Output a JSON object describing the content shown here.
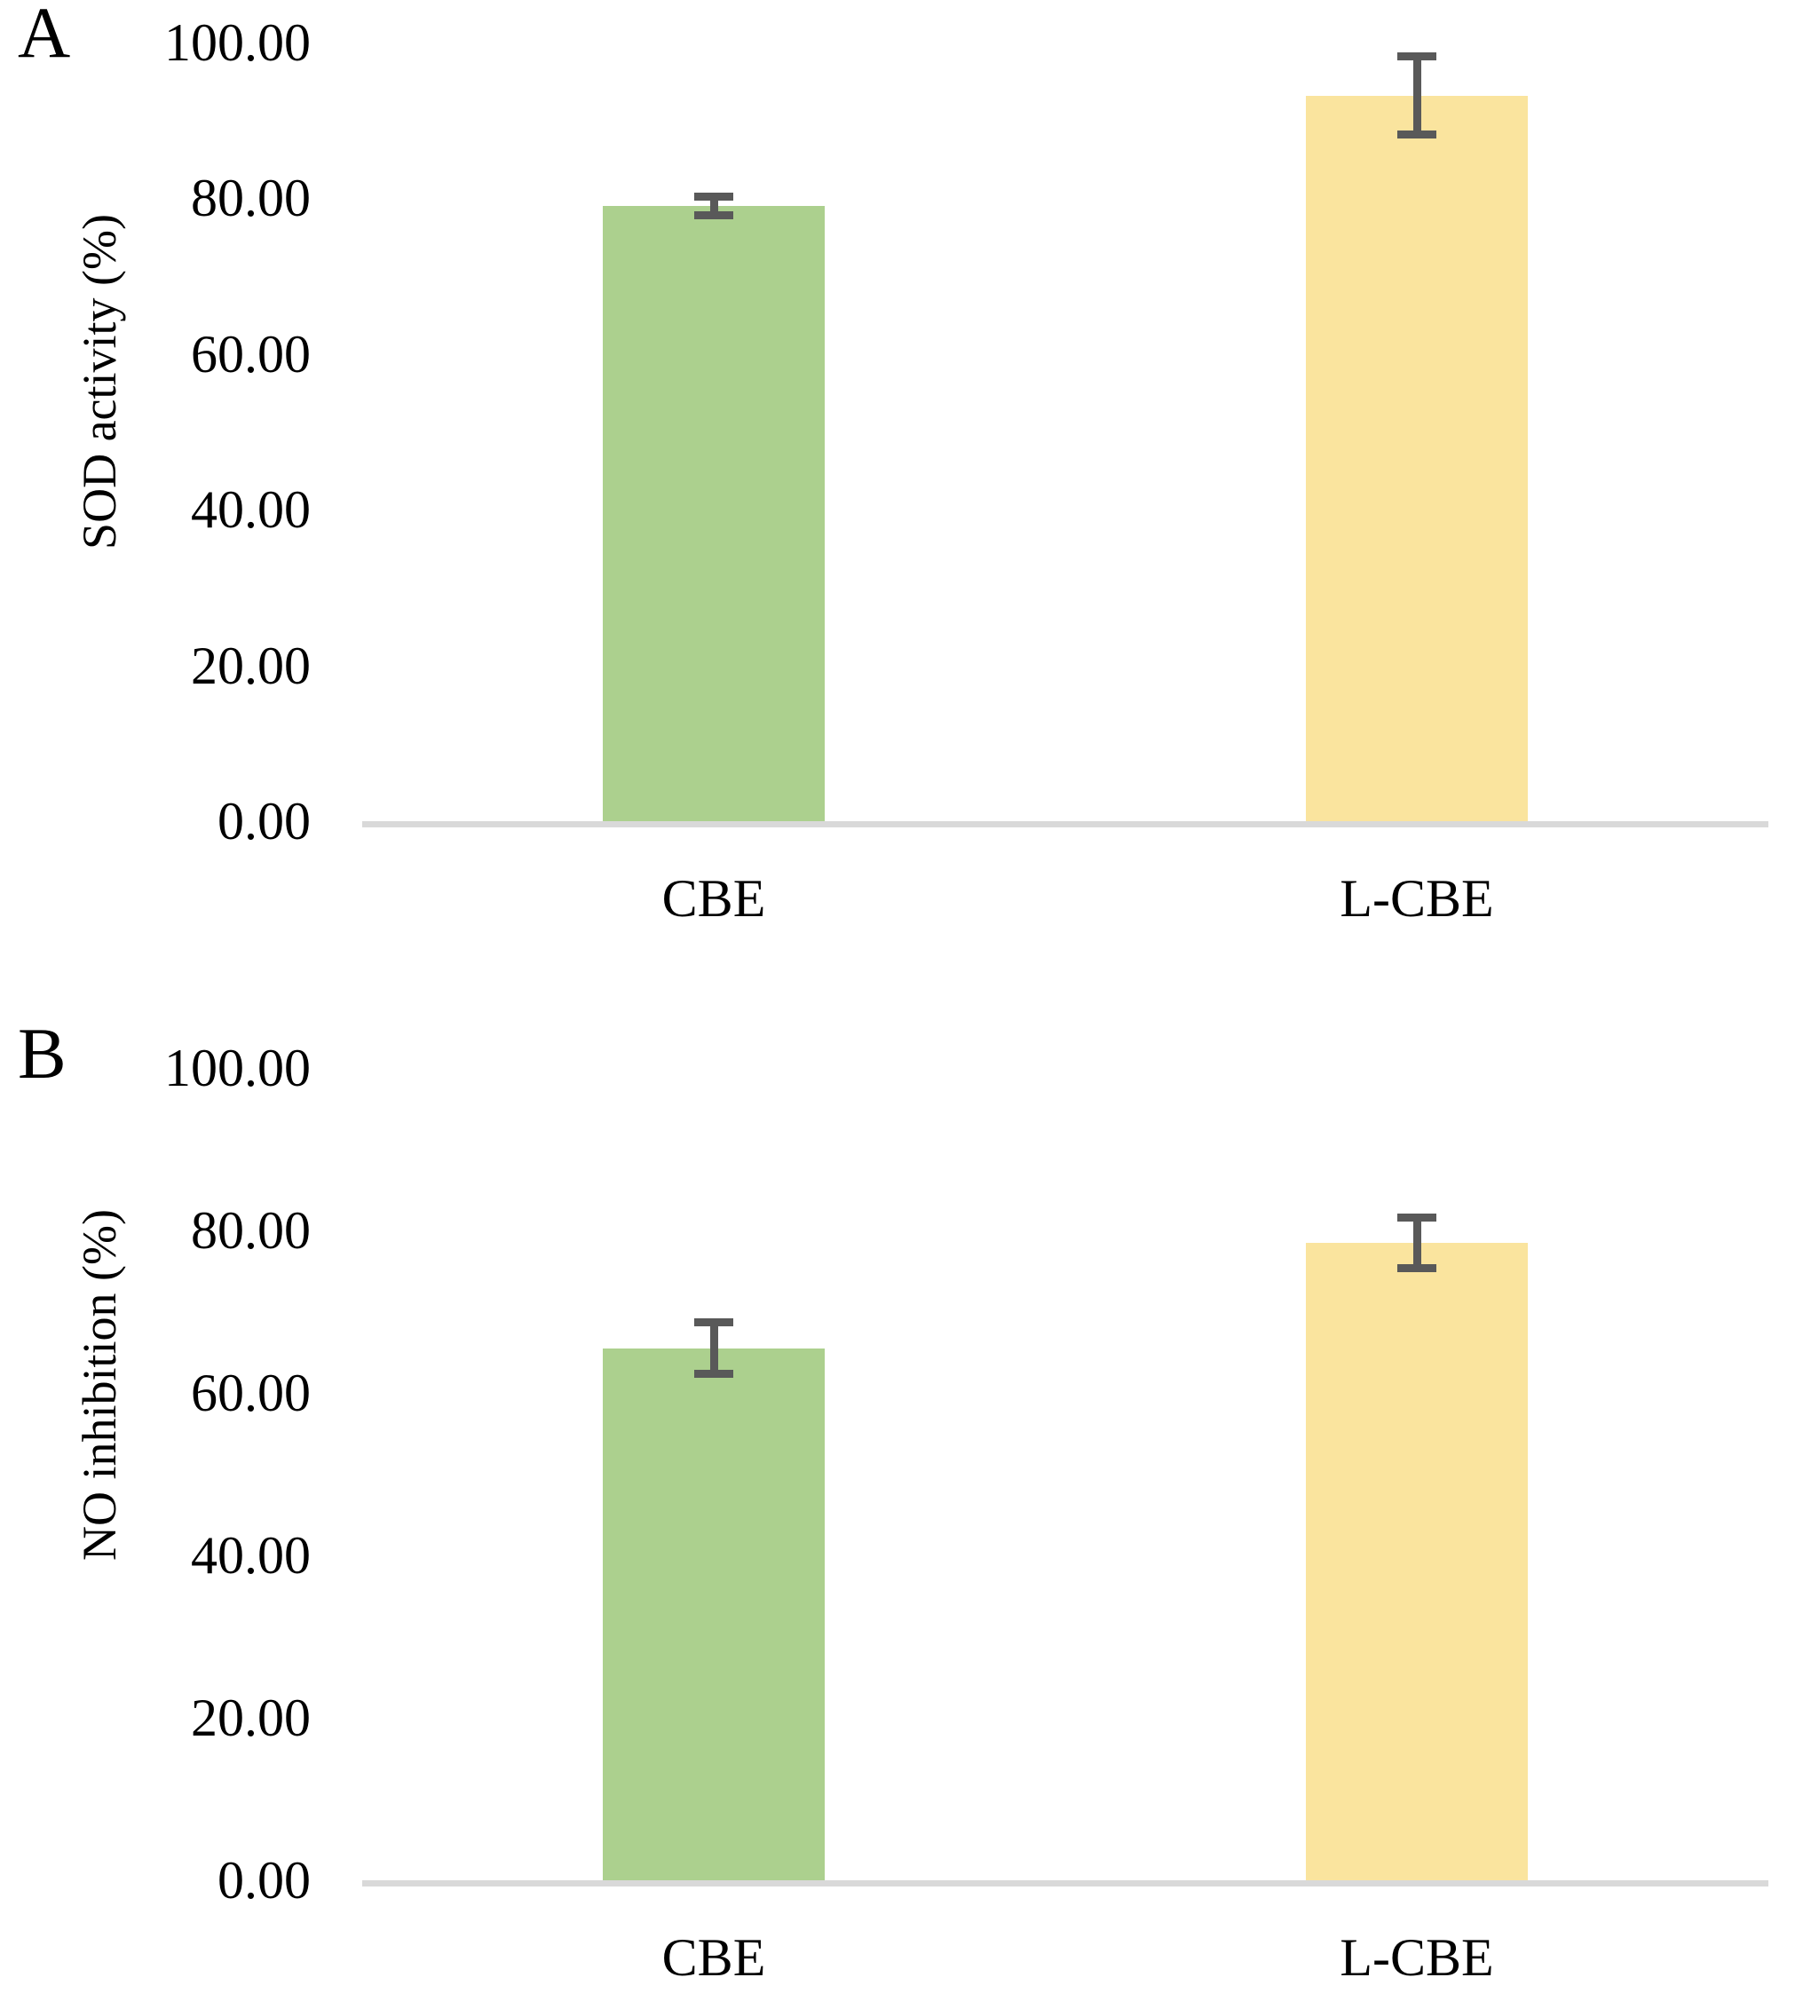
{
  "figure_type": "two-panel bar chart figure",
  "chart_data": [
    {
      "type": "bar",
      "panel_label": "A",
      "title": "",
      "xlabel": "",
      "ylabel": "SOD activity (%)",
      "categories": [
        "CBE",
        "L-CBE"
      ],
      "values": [
        79.0,
        93.2
      ],
      "errors": [
        1.2,
        5.0
      ],
      "error_bar_style": "plus-minus caps",
      "ylim": [
        0,
        100
      ],
      "ytick_labels": [
        "100.00",
        "80.00",
        "60.00",
        "40.00",
        "20.00",
        "0.00"
      ],
      "grid": "off",
      "legend": "none",
      "bar_colors": [
        "#ACD08E",
        "#FAE49E"
      ],
      "error_color": "#595959",
      "axis_line_color": "#D9D9D9",
      "text_color": "#000000"
    },
    {
      "type": "bar",
      "panel_label": "B",
      "title": "",
      "xlabel": "",
      "ylabel": "NO inhibition (%)",
      "categories": [
        "CBE",
        "L-CBE"
      ],
      "values": [
        65.5,
        78.5
      ],
      "errors": [
        3.2,
        3.1
      ],
      "error_bar_style": "plus-minus caps",
      "ylim": [
        0,
        100
      ],
      "ytick_labels": [
        "100.00",
        "80.00",
        "60.00",
        "40.00",
        "20.00",
        "0.00"
      ],
      "grid": "off",
      "legend": "none",
      "bar_colors": [
        "#ACD08E",
        "#FAE49E"
      ],
      "error_color": "#595959",
      "axis_line_color": "#D9D9D9",
      "text_color": "#000000"
    }
  ]
}
